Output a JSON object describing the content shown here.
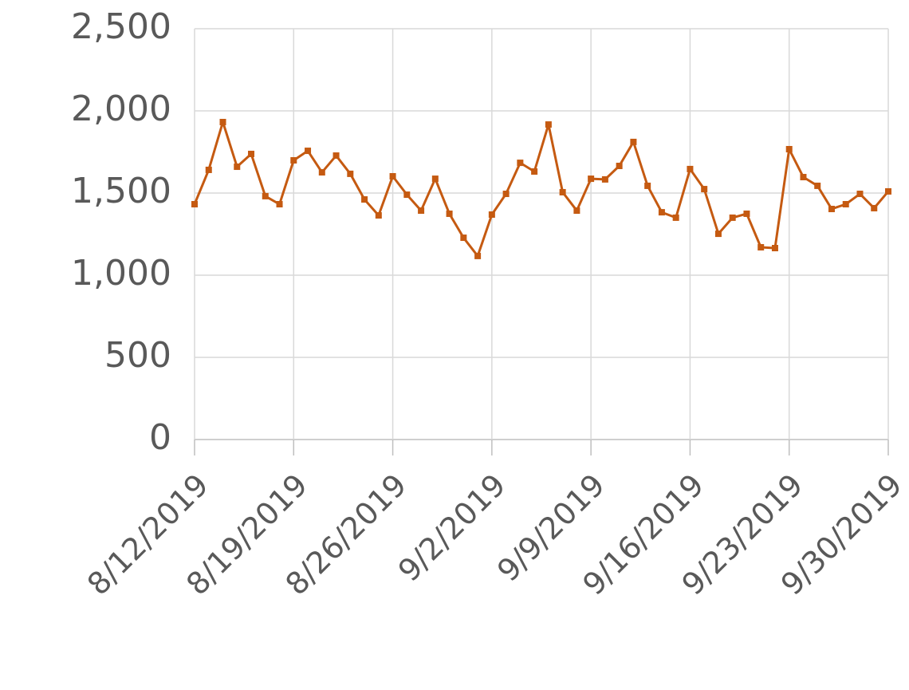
{
  "chart_data": {
    "type": "line",
    "x": [
      "8/12/2019",
      "8/13/2019",
      "8/14/2019",
      "8/15/2019",
      "8/16/2019",
      "8/17/2019",
      "8/18/2019",
      "8/19/2019",
      "8/20/2019",
      "8/21/2019",
      "8/22/2019",
      "8/23/2019",
      "8/24/2019",
      "8/25/2019",
      "8/26/2019",
      "8/27/2019",
      "8/28/2019",
      "8/29/2019",
      "8/30/2019",
      "8/31/2019",
      "9/1/2019",
      "9/2/2019",
      "9/3/2019",
      "9/4/2019",
      "9/5/2019",
      "9/6/2019",
      "9/7/2019",
      "9/8/2019",
      "9/9/2019",
      "9/10/2019",
      "9/11/2019",
      "9/12/2019",
      "9/13/2019",
      "9/14/2019",
      "9/15/2019",
      "9/16/2019",
      "9/17/2019",
      "9/18/2019",
      "9/19/2019",
      "9/20/2019",
      "9/21/2019",
      "9/22/2019",
      "9/23/2019",
      "9/24/2019",
      "9/25/2019",
      "9/26/2019",
      "9/27/2019",
      "9/28/2019",
      "9/29/2019",
      "9/30/2019"
    ],
    "series": [
      {
        "color": "#c55a11",
        "values": [
          1432,
          1641,
          1932,
          1660,
          1738,
          1481,
          1432,
          1699,
          1757,
          1626,
          1728,
          1617,
          1461,
          1364,
          1602,
          1490,
          1393,
          1587,
          1374,
          1228,
          1117,
          1369,
          1495,
          1684,
          1631,
          1917,
          1505,
          1393,
          1587,
          1583,
          1665,
          1811,
          1544,
          1383,
          1350,
          1646,
          1524,
          1252,
          1350,
          1374,
          1170,
          1165,
          1767,
          1597,
          1544,
          1403,
          1432,
          1495,
          1408,
          1510
        ]
      }
    ],
    "xticks": [
      "8/12/2019",
      "8/19/2019",
      "8/26/2019",
      "9/2/2019",
      "9/9/2019",
      "9/16/2019",
      "9/23/2019",
      "9/30/2019"
    ],
    "ylim": [
      0,
      2500
    ],
    "yticks": [
      0,
      {
        "value": 500,
        "label": "500"
      },
      {
        "value": 1000,
        "label": "1,000"
      },
      {
        "value": 1500,
        "label": "1,500"
      },
      {
        "value": 2000,
        "label": "2,000"
      },
      {
        "value": 2500,
        "label": "2,500"
      }
    ],
    "grid": true
  }
}
